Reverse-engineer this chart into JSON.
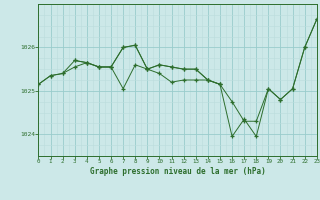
{
  "title": "Graphe pression niveau de la mer (hPa)",
  "bg_color": "#cce8e8",
  "grid_color_major": "#99cccc",
  "grid_color_minor": "#bbdddd",
  "line_color": "#2d6e2d",
  "xlim": [
    0,
    23
  ],
  "ylim": [
    1023.5,
    1027.0
  ],
  "yticks": [
    1024,
    1025,
    1026
  ],
  "xticks": [
    0,
    1,
    2,
    3,
    4,
    5,
    6,
    7,
    8,
    9,
    10,
    11,
    12,
    13,
    14,
    15,
    16,
    17,
    18,
    19,
    20,
    21,
    22,
    23
  ],
  "multi_lines": [
    {
      "x": [
        0,
        1,
        2,
        3,
        4,
        5,
        6,
        7,
        8,
        9,
        10,
        11,
        12,
        13,
        14,
        15,
        16,
        17,
        18,
        19,
        20,
        21,
        22,
        23
      ],
      "y": [
        1025.15,
        1025.35,
        1025.4,
        1025.55,
        1025.65,
        1025.55,
        1025.55,
        1026.0,
        1026.05,
        1025.5,
        1025.6,
        1025.55,
        1025.5,
        1025.5,
        1025.25,
        1025.15,
        1024.75,
        1024.3,
        1024.3,
        1025.05,
        1024.8,
        1025.05,
        1026.0,
        1026.65
      ]
    },
    {
      "x": [
        0,
        1,
        2,
        3,
        4,
        5,
        6,
        7,
        8,
        9,
        10,
        11,
        12,
        13,
        14,
        15,
        16,
        17,
        18,
        19,
        20,
        21,
        22,
        23
      ],
      "y": [
        1025.15,
        1025.35,
        1025.4,
        1025.7,
        1025.65,
        1025.55,
        1025.55,
        1025.05,
        1025.6,
        1025.5,
        1025.4,
        1025.2,
        1025.25,
        1025.25,
        1025.25,
        1025.15,
        1023.95,
        1024.35,
        1023.95,
        1025.05,
        1024.8,
        1025.05,
        1026.0,
        1026.65
      ]
    },
    {
      "x": [
        3,
        4,
        5,
        6,
        7,
        8,
        9,
        10,
        11,
        12,
        13,
        14,
        15
      ],
      "y": [
        1025.7,
        1025.65,
        1025.55,
        1025.55,
        1026.0,
        1026.05,
        1025.5,
        1025.6,
        1025.55,
        1025.5,
        1025.5,
        1025.25,
        1025.15
      ]
    }
  ]
}
